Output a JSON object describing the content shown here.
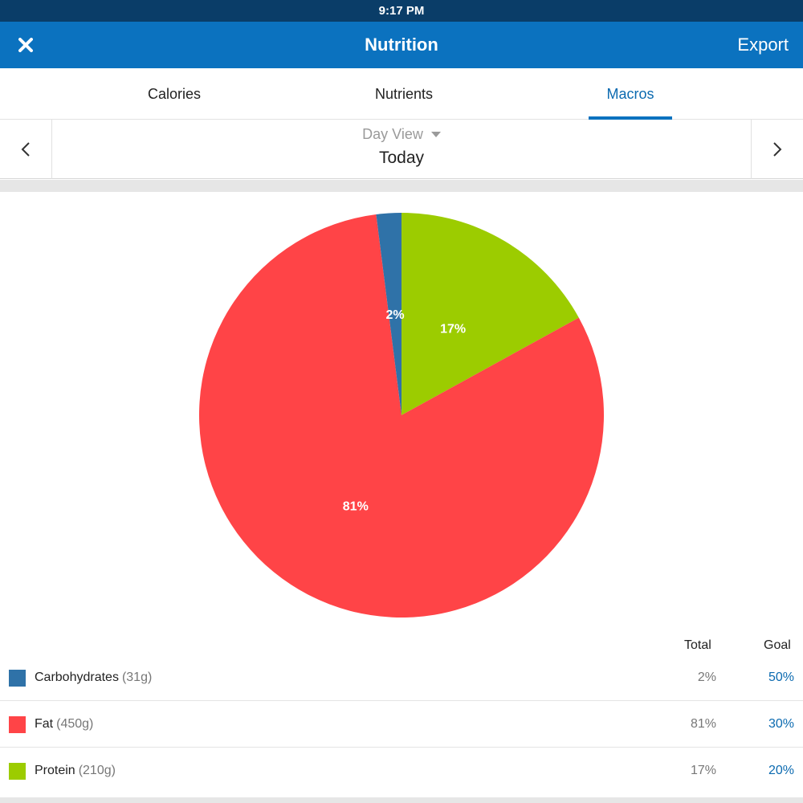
{
  "status_bar": {
    "time": "9:17 PM"
  },
  "nav": {
    "title": "Nutrition",
    "close_icon": "close-icon",
    "export_label": "Export"
  },
  "tabs": [
    {
      "label": "Calories",
      "active": false
    },
    {
      "label": "Nutrients",
      "active": false
    },
    {
      "label": "Macros",
      "active": true
    }
  ],
  "date_nav": {
    "view_label": "Day View",
    "date_label": "Today",
    "prev_icon": "chevron-left-icon",
    "next_icon": "chevron-right-icon"
  },
  "chart_data": {
    "type": "pie",
    "labels": [
      "Carbohydrates",
      "Fat",
      "Protein"
    ],
    "values": [
      2,
      81,
      17
    ],
    "value_labels": [
      "2%",
      "81%",
      "17%"
    ],
    "colors": [
      "#2f72a8",
      "#ff4447",
      "#9ccc00"
    ],
    "start_order": [
      "Protein",
      "Fat",
      "Carbohydrates"
    ],
    "start_angle": "12 o'clock, clockwise"
  },
  "legend": {
    "total_header": "Total",
    "goal_header": "Goal",
    "rows": [
      {
        "name": "Carbohydrates",
        "amount": "(31g)",
        "total": "2%",
        "goal": "50%",
        "color": "#2f72a8"
      },
      {
        "name": "Fat",
        "amount": "(450g)",
        "total": "81%",
        "goal": "30%",
        "color": "#ff4447"
      },
      {
        "name": "Protein",
        "amount": "(210g)",
        "total": "17%",
        "goal": "20%",
        "color": "#9ccc00"
      }
    ]
  }
}
